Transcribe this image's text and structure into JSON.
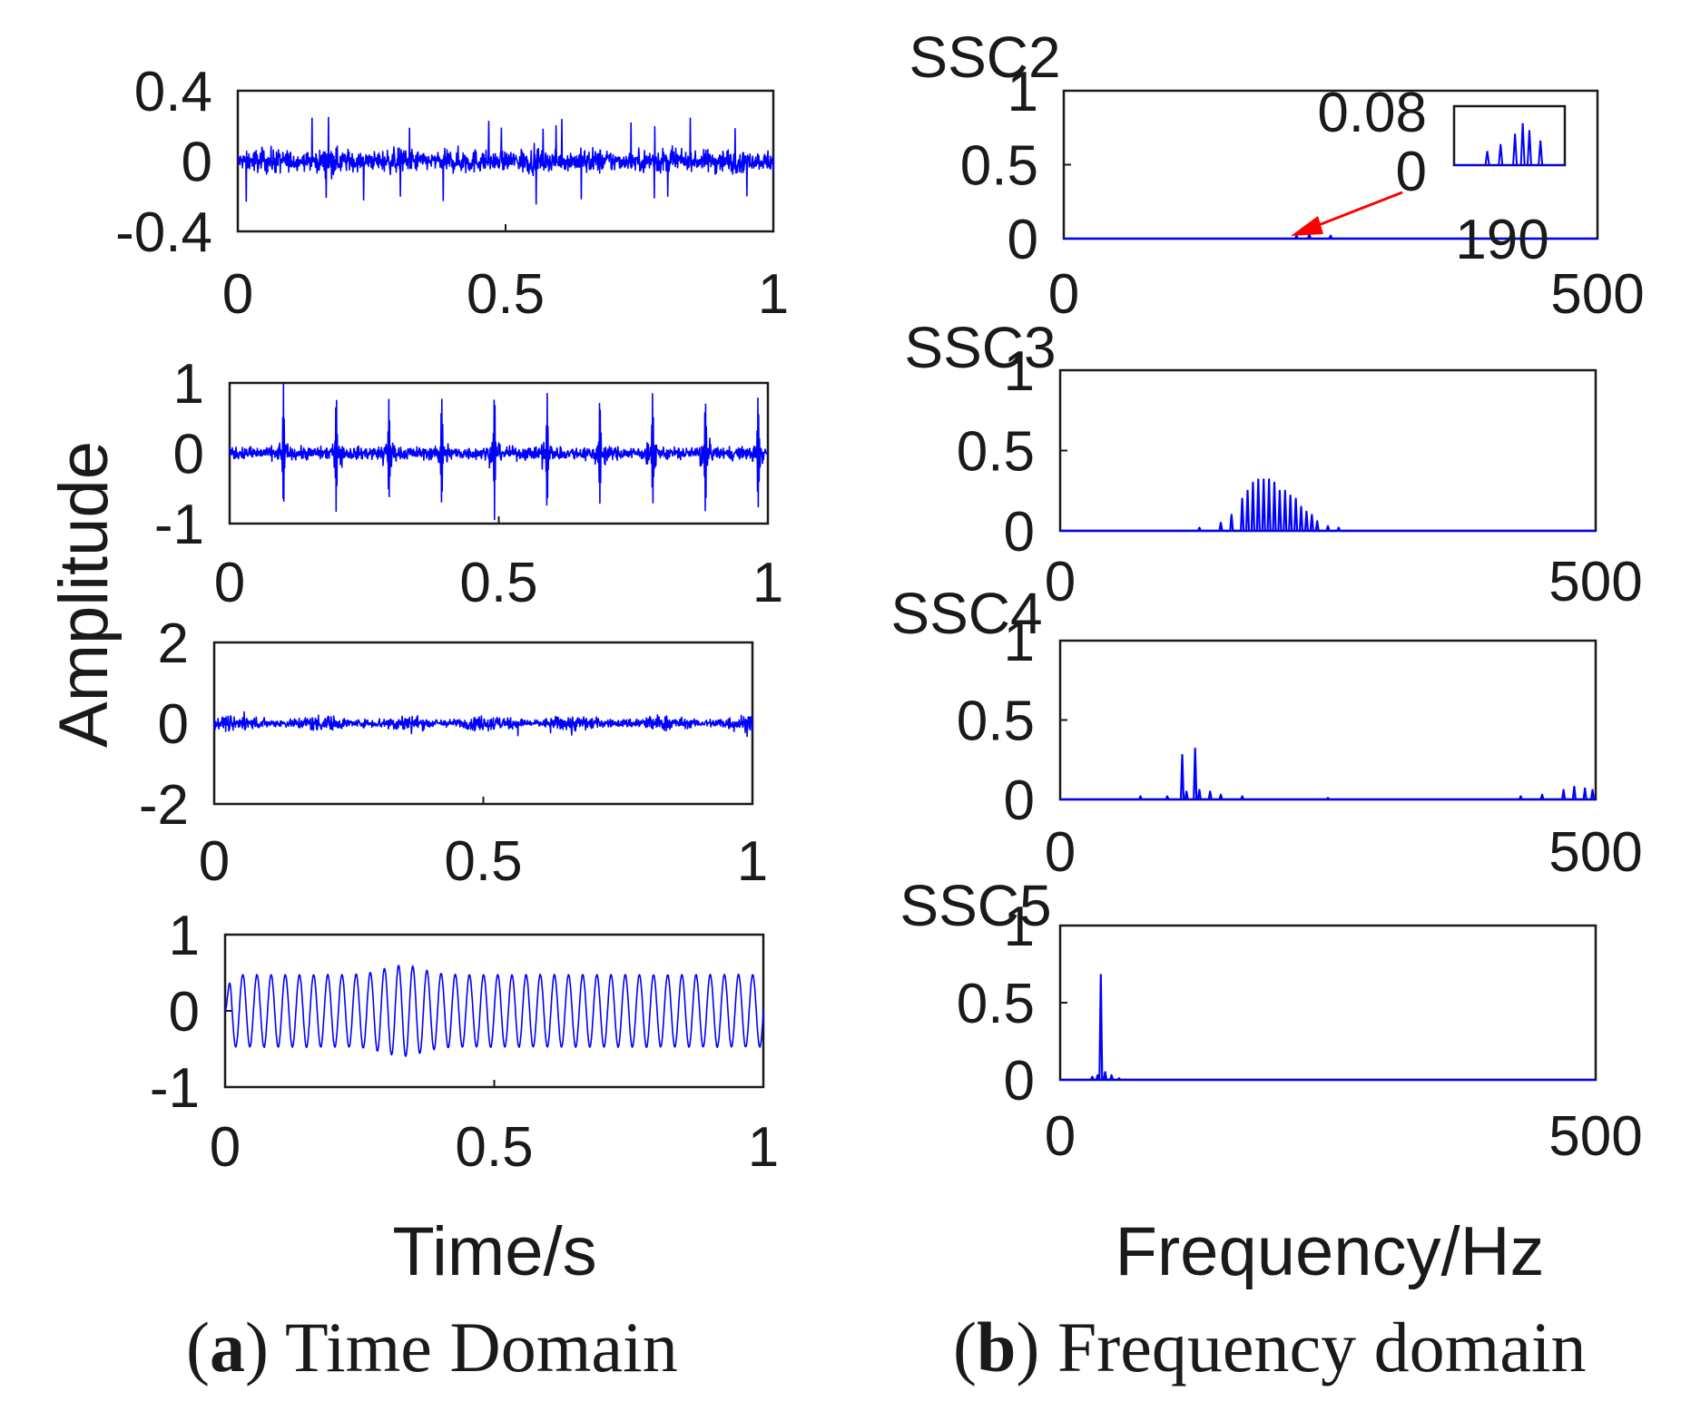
{
  "figure": {
    "time_xlabel": "Time/s",
    "freq_xlabel": "Frequency/Hz",
    "ylabel": "Amplitude",
    "caption_a": {
      "letter": "a",
      "text": " Time Domain"
    },
    "caption_b": {
      "letter": "b",
      "text": " Frequency domain"
    },
    "line_color": "#0000ff",
    "arrow_color": "#ff0000"
  },
  "chart_data": [
    {
      "panel": "a1",
      "type": "line",
      "series": "SSC2",
      "domain": "time",
      "xlim": [
        0,
        1
      ],
      "ylim": [
        -0.4,
        0.4
      ],
      "xticks": [
        "0",
        "0.5",
        "1"
      ],
      "yticks": [
        "0.4",
        "0",
        "-0.4"
      ],
      "signal": "broadband noise with impulses",
      "amplitude": 0.12,
      "peak_amplitude": 0.25
    },
    {
      "panel": "a2",
      "type": "line",
      "series": "SSC3",
      "domain": "time",
      "xlim": [
        0,
        1
      ],
      "ylim": [
        -1,
        1
      ],
      "xticks": [
        "0",
        "0.5",
        "1"
      ],
      "yticks": [
        "1",
        "0",
        "-1"
      ],
      "signal": "periodic impulses",
      "impulse_period_s": 0.098,
      "impulse_amplitude": 1,
      "noise_amplitude": 0.15
    },
    {
      "panel": "a3",
      "type": "line",
      "series": "SSC4",
      "domain": "time",
      "xlim": [
        0,
        1
      ],
      "ylim": [
        -2,
        2
      ],
      "xticks": [
        "0",
        "0.5",
        "1"
      ],
      "yticks": [
        "2",
        "0",
        "-2"
      ],
      "signal": "noise",
      "amplitude": 0.3
    },
    {
      "panel": "a4",
      "type": "line",
      "series": "SSC5",
      "domain": "time",
      "xlim": [
        0,
        1
      ],
      "ylim": [
        -1,
        1
      ],
      "xticks": [
        "0",
        "0.5",
        "1"
      ],
      "yticks": [
        "1",
        "0",
        "-1"
      ],
      "signal": "sinusoid",
      "frequency_hz": 38,
      "amplitude": 0.5
    },
    {
      "panel": "b1",
      "type": "line",
      "title": "SSC2",
      "domain": "frequency",
      "xlim": [
        0,
        500
      ],
      "ylim": [
        0,
        1
      ],
      "xticks": [
        "0",
        "500"
      ],
      "yticks": [
        "1",
        "0.5",
        "0"
      ],
      "peaks": [
        [
          218,
          0.02
        ],
        [
          230,
          0.03
        ],
        [
          250,
          0.02
        ]
      ],
      "inset": {
        "ytop_label": "0.08",
        "ybottom_label": "0",
        "xlabel": "190",
        "ylim": [
          0,
          0.08
        ],
        "peaks": [
          [
            0.3,
            0.02
          ],
          [
            0.42,
            0.03
          ],
          [
            0.55,
            0.045
          ],
          [
            0.62,
            0.06
          ],
          [
            0.68,
            0.05
          ],
          [
            0.78,
            0.035
          ]
        ]
      }
    },
    {
      "panel": "b2",
      "type": "line",
      "title": "SSC3",
      "domain": "frequency",
      "xlim": [
        0,
        500
      ],
      "ylim": [
        0,
        1
      ],
      "xticks": [
        "0",
        "500"
      ],
      "yticks": [
        "1",
        "0.5",
        "0"
      ],
      "peaks": [
        [
          130,
          0.02
        ],
        [
          150,
          0.05
        ],
        [
          160,
          0.1
        ],
        [
          170,
          0.2
        ],
        [
          175,
          0.25
        ],
        [
          180,
          0.3
        ],
        [
          185,
          0.32
        ],
        [
          190,
          0.32
        ],
        [
          195,
          0.32
        ],
        [
          200,
          0.3
        ],
        [
          205,
          0.25
        ],
        [
          210,
          0.25
        ],
        [
          215,
          0.22
        ],
        [
          220,
          0.2
        ],
        [
          225,
          0.15
        ],
        [
          230,
          0.12
        ],
        [
          235,
          0.1
        ],
        [
          240,
          0.06
        ],
        [
          250,
          0.03
        ],
        [
          260,
          0.02
        ]
      ]
    },
    {
      "panel": "b3",
      "type": "line",
      "title": "SSC4",
      "domain": "frequency",
      "xlim": [
        0,
        500
      ],
      "ylim": [
        0,
        1
      ],
      "xticks": [
        "0",
        "500"
      ],
      "yticks": [
        "1",
        "0.5",
        "0"
      ],
      "peaks": [
        [
          75,
          0.02
        ],
        [
          100,
          0.02
        ],
        [
          114,
          0.28
        ],
        [
          118,
          0.05
        ],
        [
          126,
          0.32
        ],
        [
          130,
          0.06
        ],
        [
          140,
          0.05
        ],
        [
          150,
          0.03
        ],
        [
          170,
          0.02
        ],
        [
          250,
          0.01
        ],
        [
          430,
          0.02
        ],
        [
          450,
          0.03
        ],
        [
          470,
          0.06
        ],
        [
          480,
          0.08
        ],
        [
          490,
          0.07
        ],
        [
          497,
          0.06
        ]
      ]
    },
    {
      "panel": "b4",
      "type": "line",
      "title": "SSC5",
      "domain": "frequency",
      "xlim": [
        0,
        500
      ],
      "ylim": [
        0,
        1
      ],
      "xticks": [
        "0",
        "500"
      ],
      "yticks": [
        "1",
        "0.5",
        "0"
      ],
      "peaks": [
        [
          30,
          0.02
        ],
        [
          35,
          0.03
        ],
        [
          38,
          0.68
        ],
        [
          42,
          0.05
        ],
        [
          48,
          0.03
        ],
        [
          55,
          0.01
        ]
      ]
    }
  ]
}
